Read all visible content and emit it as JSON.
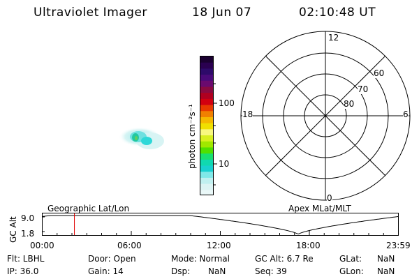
{
  "header": {
    "title": "Ultraviolet Imager",
    "date": "18 Jun 07",
    "time": "02:10:48 UT"
  },
  "colorbar": {
    "unit_label": "photon cm⁻²s⁻¹",
    "tick_labels": [
      "100",
      "10"
    ],
    "colors_top_to_bottom": [
      "#1a0030",
      "#2a0050",
      "#2e0a6a",
      "#4a0a7a",
      "#6a0a6e",
      "#8a0a40",
      "#b00020",
      "#d20010",
      "#e83a00",
      "#f08000",
      "#f5b800",
      "#f0e000",
      "#f8f880",
      "#d8f020",
      "#a0e800",
      "#50e000",
      "#18e070",
      "#10d8b0",
      "#18d0d0",
      "#80e8e8",
      "#c0f0f0",
      "#dcf4f4",
      "#eaf8f8"
    ],
    "scale": "log"
  },
  "polar": {
    "mlt_labels": [
      "12",
      "18",
      "6",
      "0"
    ],
    "mlat_labels": [
      "60",
      "70",
      "80"
    ]
  },
  "timeline": {
    "ylabel": "GC Alt",
    "y_ticks": [
      "9.0",
      "1.8"
    ],
    "left_title": "Geographic Lat/Lon",
    "right_title": "Apex MLat/MLT",
    "x_ticks": [
      "00:00",
      "06:00",
      "12:00",
      "18:00",
      "23:59"
    ],
    "marker_time": "02:10",
    "marker_color": "#e00000"
  },
  "info": {
    "row1": [
      "Flt: LBHL",
      "Door: Open",
      "Mode: Normal",
      "GC Alt: 6.7 Re",
      "GLat:",
      "NaN"
    ],
    "row2": [
      "IP: 36.0",
      "Gain: 14",
      "Dsp:",
      "NaN",
      "Seq: 39",
      "GLon:",
      "NaN"
    ]
  }
}
